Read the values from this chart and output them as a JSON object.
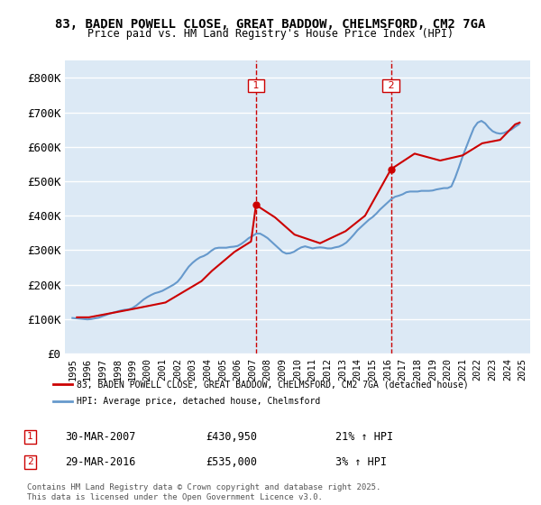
{
  "title": "83, BADEN POWELL CLOSE, GREAT BADDOW, CHELMSFORD, CM2 7GA",
  "subtitle": "Price paid vs. HM Land Registry's House Price Index (HPI)",
  "ylabel": "",
  "xlabel": "",
  "ylim": [
    0,
    850000
  ],
  "yticks": [
    0,
    100000,
    200000,
    300000,
    400000,
    500000,
    600000,
    700000,
    800000
  ],
  "ytick_labels": [
    "£0",
    "£100K",
    "£200K",
    "£300K",
    "£400K",
    "£500K",
    "£600K",
    "£700K",
    "£800K"
  ],
  "bg_color": "#dce9f5",
  "plot_bg_color": "#dce9f5",
  "grid_color": "#ffffff",
  "red_color": "#cc0000",
  "blue_color": "#6699cc",
  "marker1_year": 2007.23,
  "marker1_value": 430950,
  "marker1_label": "1",
  "marker1_date": "30-MAR-2007",
  "marker1_price": "£430,950",
  "marker1_hpi": "21% ↑ HPI",
  "marker2_year": 2016.23,
  "marker2_value": 535000,
  "marker2_label": "2",
  "marker2_date": "29-MAR-2016",
  "marker2_price": "£535,000",
  "marker2_hpi": "3% ↑ HPI",
  "legend_line1": "83, BADEN POWELL CLOSE, GREAT BADDOW, CHELMSFORD, CM2 7GA (detached house)",
  "legend_line2": "HPI: Average price, detached house, Chelmsford",
  "footnote": "Contains HM Land Registry data © Crown copyright and database right 2025.\nThis data is licensed under the Open Government Licence v3.0.",
  "hpi_years": [
    1995.0,
    1995.25,
    1995.5,
    1995.75,
    1996.0,
    1996.25,
    1996.5,
    1996.75,
    1997.0,
    1997.25,
    1997.5,
    1997.75,
    1998.0,
    1998.25,
    1998.5,
    1998.75,
    1999.0,
    1999.25,
    1999.5,
    1999.75,
    2000.0,
    2000.25,
    2000.5,
    2000.75,
    2001.0,
    2001.25,
    2001.5,
    2001.75,
    2002.0,
    2002.25,
    2002.5,
    2002.75,
    2003.0,
    2003.25,
    2003.5,
    2003.75,
    2004.0,
    2004.25,
    2004.5,
    2004.75,
    2005.0,
    2005.25,
    2005.5,
    2005.75,
    2006.0,
    2006.25,
    2006.5,
    2006.75,
    2007.0,
    2007.25,
    2007.5,
    2007.75,
    2008.0,
    2008.25,
    2008.5,
    2008.75,
    2009.0,
    2009.25,
    2009.5,
    2009.75,
    2010.0,
    2010.25,
    2010.5,
    2010.75,
    2011.0,
    2011.25,
    2011.5,
    2011.75,
    2012.0,
    2012.25,
    2012.5,
    2012.75,
    2013.0,
    2013.25,
    2013.5,
    2013.75,
    2014.0,
    2014.25,
    2014.5,
    2014.75,
    2015.0,
    2015.25,
    2015.5,
    2015.75,
    2016.0,
    2016.25,
    2016.5,
    2016.75,
    2017.0,
    2017.25,
    2017.5,
    2017.75,
    2018.0,
    2018.25,
    2018.5,
    2018.75,
    2019.0,
    2019.25,
    2019.5,
    2019.75,
    2020.0,
    2020.25,
    2020.5,
    2020.75,
    2021.0,
    2021.25,
    2021.5,
    2021.75,
    2022.0,
    2022.25,
    2022.5,
    2022.75,
    2023.0,
    2023.25,
    2023.5,
    2023.75,
    2024.0,
    2024.25,
    2024.5,
    2024.75
  ],
  "hpi_values": [
    103000,
    102000,
    101000,
    100000,
    99000,
    100000,
    102000,
    104000,
    108000,
    112000,
    116000,
    119000,
    122000,
    125000,
    127000,
    128000,
    132000,
    139000,
    148000,
    157000,
    164000,
    170000,
    175000,
    178000,
    182000,
    188000,
    194000,
    200000,
    208000,
    221000,
    237000,
    252000,
    263000,
    272000,
    279000,
    283000,
    289000,
    298000,
    305000,
    307000,
    307000,
    307000,
    309000,
    310000,
    312000,
    318000,
    326000,
    335000,
    341000,
    348000,
    348000,
    342000,
    335000,
    325000,
    315000,
    305000,
    295000,
    290000,
    291000,
    295000,
    302000,
    308000,
    311000,
    308000,
    305000,
    307000,
    308000,
    307000,
    305000,
    305000,
    308000,
    310000,
    315000,
    322000,
    333000,
    345000,
    358000,
    368000,
    378000,
    388000,
    396000,
    406000,
    418000,
    428000,
    438000,
    448000,
    455000,
    458000,
    462000,
    468000,
    470000,
    470000,
    470000,
    472000,
    472000,
    472000,
    473000,
    476000,
    478000,
    480000,
    480000,
    485000,
    510000,
    540000,
    572000,
    600000,
    628000,
    655000,
    670000,
    675000,
    668000,
    655000,
    645000,
    640000,
    638000,
    640000,
    645000,
    650000,
    658000,
    665000
  ],
  "price_years": [
    1995.3,
    1996.1,
    1998.9,
    2001.2,
    2003.6,
    2004.3,
    2005.8,
    2006.9,
    2007.23,
    2008.5,
    2009.8,
    2011.5,
    2013.2,
    2014.5,
    2016.23,
    2017.8,
    2019.5,
    2021.0,
    2022.3,
    2023.5,
    2024.5,
    2024.8
  ],
  "price_values": [
    105000,
    105000,
    128000,
    148000,
    210000,
    240000,
    295000,
    325000,
    430950,
    395000,
    345000,
    320000,
    355000,
    400000,
    535000,
    580000,
    560000,
    575000,
    610000,
    620000,
    665000,
    670000
  ]
}
